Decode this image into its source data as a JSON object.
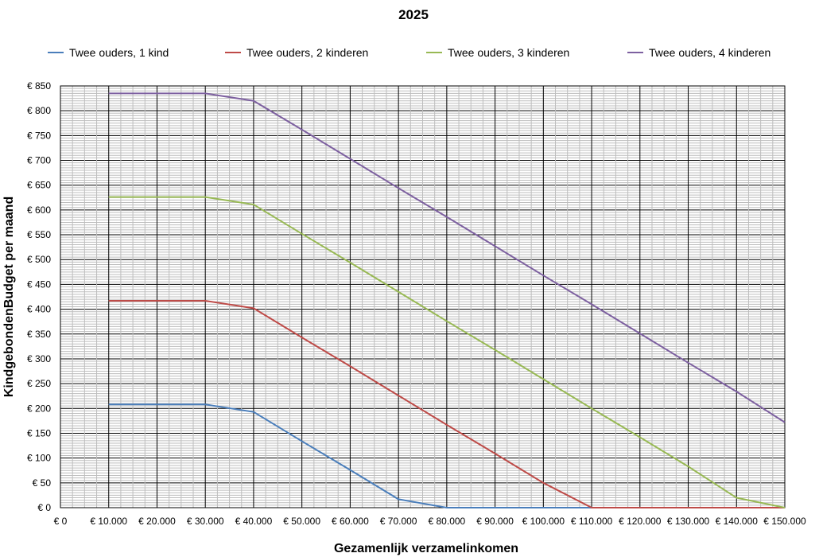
{
  "chart_data": {
    "type": "line",
    "title": "2025",
    "xlabel": "Gezamenlijk verzamelinkomen",
    "ylabel": "KindgebondenBudget per maand",
    "xlim": [
      0,
      150000
    ],
    "ylim": [
      0,
      850
    ],
    "grid": true,
    "legend_position": "top",
    "x_tick_labels": [
      "€ 0",
      "€ 10.000",
      "€ 20.000",
      "€ 30.000",
      "€ 40.000",
      "€ 50.000",
      "€ 60.000",
      "€ 70.000",
      "€ 80.000",
      "€ 90.000",
      "€ 100.000",
      "€ 110.000",
      "€ 120.000",
      "€ 130.000",
      "€ 140.000",
      "€ 150.000"
    ],
    "y_tick_labels": [
      "€ 0",
      "€ 50",
      "€ 100",
      "€ 150",
      "€ 200",
      "€ 250",
      "€ 300",
      "€ 350",
      "€ 400",
      "€ 450",
      "€ 500",
      "€ 550",
      "€ 600",
      "€ 650",
      "€ 700",
      "€ 750",
      "€ 800",
      "€ 850"
    ],
    "x": [
      10000,
      20000,
      30000,
      40000,
      50000,
      60000,
      70000,
      80000,
      90000,
      100000,
      110000,
      120000,
      130000,
      140000,
      150000
    ],
    "series": [
      {
        "name": "Twee ouders, 1 kind",
        "color": "#4a7ebb",
        "values": [
          208,
          208,
          208,
          193,
          134,
          76,
          17,
          0,
          0,
          0,
          0,
          0,
          0,
          0,
          0
        ]
      },
      {
        "name": "Twee ouders, 2 kinderen",
        "color": "#be4b48",
        "values": [
          417,
          417,
          417,
          402,
          343,
          285,
          226,
          167,
          109,
          50,
          0,
          0,
          0,
          0,
          0
        ]
      },
      {
        "name": "Twee ouders, 3 kinderen",
        "color": "#98b954",
        "values": [
          626,
          626,
          626,
          611,
          552,
          494,
          435,
          376,
          318,
          259,
          200,
          142,
          83,
          20,
          0
        ]
      },
      {
        "name": "Twee ouders, 4 kinderen",
        "color": "#7d60a0",
        "values": [
          835,
          835,
          835,
          820,
          762,
          703,
          644,
          586,
          527,
          468,
          410,
          351,
          292,
          234,
          172
        ]
      }
    ]
  }
}
